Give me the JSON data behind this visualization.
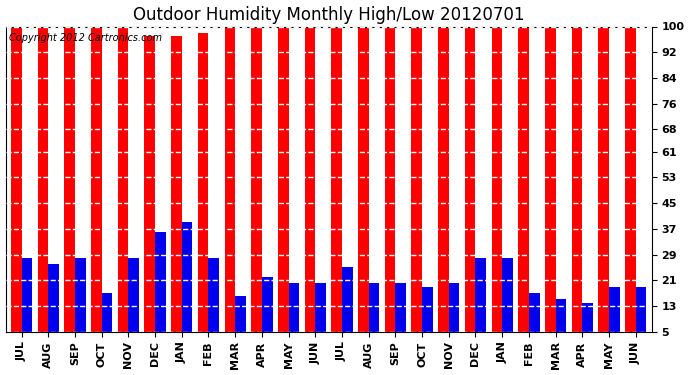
{
  "title": "Outdoor Humidity Monthly High/Low 20120701",
  "copyright": "Copyright 2012 Cartronics.com",
  "months": [
    "JUL",
    "AUG",
    "SEP",
    "OCT",
    "NOV",
    "DEC",
    "JAN",
    "FEB",
    "MAR",
    "APR",
    "MAY",
    "JUN",
    "JUL",
    "AUG",
    "SEP",
    "OCT",
    "NOV",
    "DEC",
    "JAN",
    "FEB",
    "MAR",
    "APR",
    "MAY",
    "JUN"
  ],
  "high_values": [
    100,
    100,
    100,
    100,
    100,
    97,
    97,
    98,
    100,
    100,
    100,
    100,
    100,
    100,
    100,
    100,
    100,
    100,
    100,
    100,
    100,
    100,
    100,
    100
  ],
  "low_values": [
    28,
    26,
    28,
    17,
    28,
    36,
    39,
    28,
    16,
    22,
    20,
    20,
    25,
    20,
    20,
    19,
    20,
    28,
    28,
    17,
    15,
    14,
    19,
    19
  ],
  "bar_color_high": "#ff0000",
  "bar_color_low": "#0000ee",
  "bg_color": "#ffffff",
  "plot_bg_color": "#ffffff",
  "grid_color": "#aaaaaa",
  "yticks": [
    5,
    13,
    21,
    29,
    37,
    45,
    53,
    61,
    68,
    76,
    84,
    92,
    100
  ],
  "ylim": [
    5,
    100
  ],
  "title_fontsize": 12,
  "tick_fontsize": 8,
  "copyright_fontsize": 7
}
